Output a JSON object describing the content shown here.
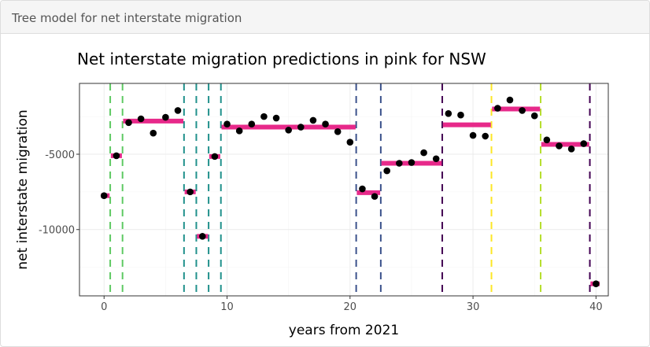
{
  "panel": {
    "title": "Tree model for net interstate migration"
  },
  "chart_data": {
    "type": "scatter",
    "title": "Net interstate migration predictions in pink for NSW",
    "xlabel": "years from 2021",
    "ylabel": "net interstate migration",
    "xlim": [
      -2,
      41
    ],
    "ylim": [
      -14400,
      -300
    ],
    "xticks": [
      0,
      10,
      20,
      30,
      40
    ],
    "yticks": [
      -5000,
      -10000
    ],
    "ytick_labels": [
      "-5000",
      "-10000"
    ],
    "grid": true,
    "series": [
      {
        "x": [
          0,
          1,
          2,
          3,
          4,
          5,
          6,
          7,
          8,
          9,
          10,
          11,
          12,
          13,
          14,
          15,
          16,
          17,
          18,
          19,
          20,
          21,
          22,
          23,
          24,
          25,
          26,
          27,
          28,
          29,
          30,
          31,
          32,
          33,
          34,
          35,
          36,
          37,
          38,
          39,
          40
        ],
        "y": [
          -7750,
          -5100,
          -2900,
          -2650,
          -3600,
          -2550,
          -2100,
          -7500,
          -10450,
          -5150,
          -3000,
          -3450,
          -3000,
          -2500,
          -2600,
          -3400,
          -3200,
          -2750,
          -3000,
          -3500,
          -4200,
          -7300,
          -7800,
          -6100,
          -5600,
          -5550,
          -4900,
          -5300,
          -2300,
          -2400,
          -3750,
          -3800,
          -1950,
          -1400,
          -2100,
          -2450,
          -4050,
          -4450,
          -4650,
          -4300,
          -13600
        ],
        "color": "#000000"
      }
    ],
    "predictions": [
      {
        "x0": -0.25,
        "x1": 0.45,
        "y": -7750
      },
      {
        "x0": 0.55,
        "x1": 1.45,
        "y": -5100
      },
      {
        "x0": 1.55,
        "x1": 6.45,
        "y": -2800
      },
      {
        "x0": 6.55,
        "x1": 7.45,
        "y": -7500
      },
      {
        "x0": 7.55,
        "x1": 8.45,
        "y": -10450
      },
      {
        "x0": 8.55,
        "x1": 9.45,
        "y": -5150
      },
      {
        "x0": 9.55,
        "x1": 20.45,
        "y": -3200
      },
      {
        "x0": 20.55,
        "x1": 22.45,
        "y": -7550
      },
      {
        "x0": 22.55,
        "x1": 27.45,
        "y": -5600
      },
      {
        "x0": 27.55,
        "x1": 31.45,
        "y": -3050
      },
      {
        "x0": 31.55,
        "x1": 35.45,
        "y": -2000
      },
      {
        "x0": 35.55,
        "x1": 39.45,
        "y": -4350
      },
      {
        "x0": 39.55,
        "x1": 40.3,
        "y": -13600
      }
    ],
    "prediction_color": "#e7298a",
    "splits": [
      {
        "x": 0.5,
        "color": "#5ec962"
      },
      {
        "x": 1.5,
        "color": "#5ec962"
      },
      {
        "x": 6.5,
        "color": "#21918c"
      },
      {
        "x": 7.5,
        "color": "#21918c"
      },
      {
        "x": 8.5,
        "color": "#21918c"
      },
      {
        "x": 9.5,
        "color": "#21918c"
      },
      {
        "x": 20.5,
        "color": "#3b528b"
      },
      {
        "x": 22.5,
        "color": "#3b528b"
      },
      {
        "x": 27.5,
        "color": "#440154"
      },
      {
        "x": 31.5,
        "color": "#fde725"
      },
      {
        "x": 35.5,
        "color": "#b5de2b"
      },
      {
        "x": 39.5,
        "color": "#440154"
      }
    ]
  }
}
